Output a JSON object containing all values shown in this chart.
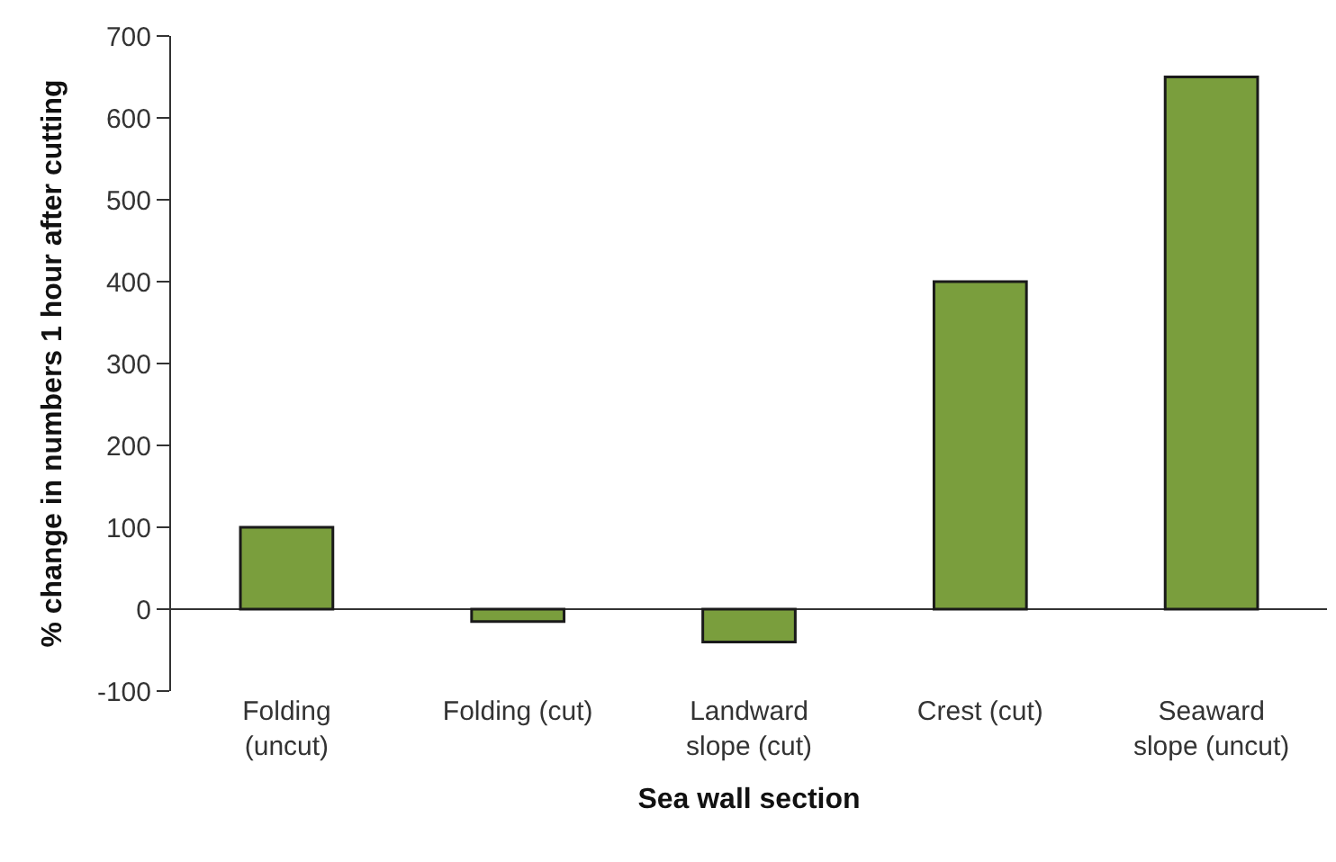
{
  "chart_data": {
    "type": "bar",
    "xlabel": "Sea wall section",
    "ylabel": "% change in numbers 1 hour after cutting",
    "categories": [
      "Folding (uncut)",
      "Folding (cut)",
      "Landward slope (cut)",
      "Crest (cut)",
      "Seaward slope (uncut)"
    ],
    "values": [
      100,
      -15,
      -40,
      400,
      650
    ],
    "color": "#7a9e3d",
    "ylim": [
      -100,
      700
    ],
    "yticks": [
      -100,
      0,
      100,
      200,
      300,
      400,
      500,
      600,
      700
    ]
  }
}
